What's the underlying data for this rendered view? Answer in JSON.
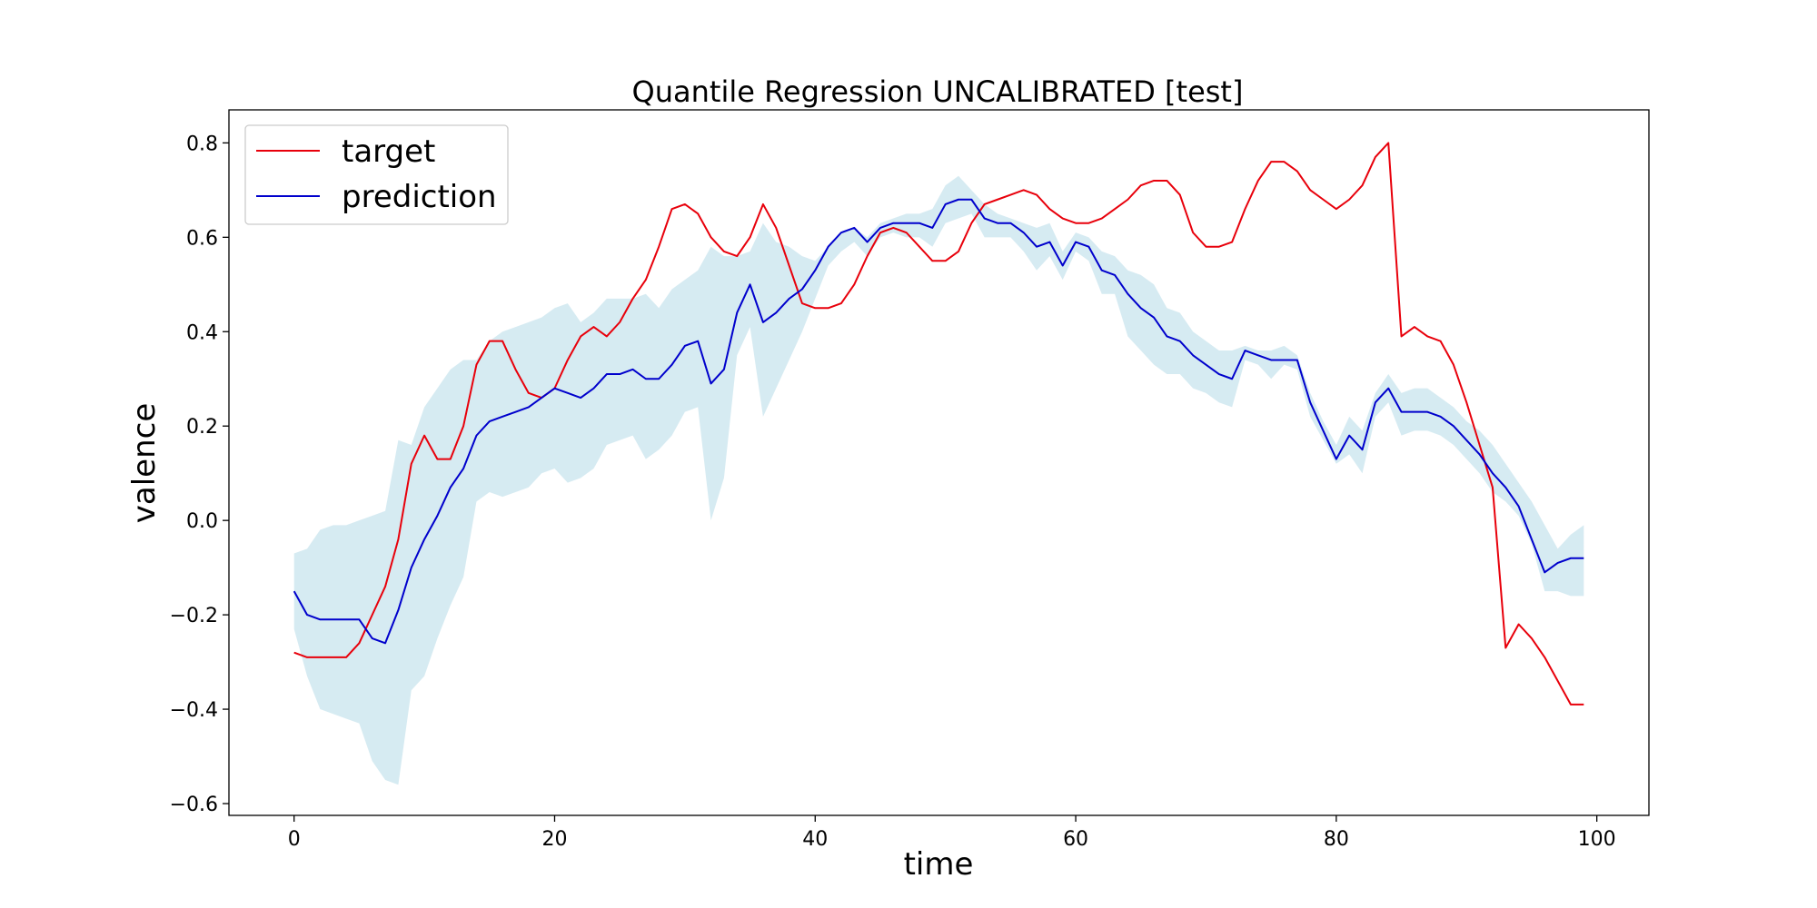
{
  "chart_data": {
    "type": "line",
    "title": "Quantile Regression UNCALIBRATED [test]",
    "xlabel": "time",
    "ylabel": "valence",
    "xlim": [
      -5,
      104
    ],
    "ylim": [
      -0.625,
      0.87
    ],
    "xticks": [
      0,
      20,
      40,
      60,
      80,
      100
    ],
    "xtick_labels": [
      "0",
      "20",
      "40",
      "60",
      "80",
      "100"
    ],
    "yticks": [
      -0.6,
      -0.4,
      -0.2,
      0.0,
      0.2,
      0.4,
      0.6,
      0.8
    ],
    "ytick_labels": [
      "−0.6",
      "−0.4",
      "−0.2",
      "0.0",
      "0.2",
      "0.4",
      "0.6",
      "0.8"
    ],
    "grid": false,
    "legend": {
      "position": "top-left",
      "entries": [
        "target",
        "prediction"
      ]
    },
    "colors": {
      "target": "#e8000b",
      "prediction": "#0000cc",
      "band": "#add8e6"
    },
    "x": [
      0,
      1,
      2,
      3,
      4,
      5,
      6,
      7,
      8,
      9,
      10,
      11,
      12,
      13,
      14,
      15,
      16,
      17,
      18,
      19,
      20,
      21,
      22,
      23,
      24,
      25,
      26,
      27,
      28,
      29,
      30,
      31,
      32,
      33,
      34,
      35,
      36,
      37,
      38,
      39,
      40,
      41,
      42,
      43,
      44,
      45,
      46,
      47,
      48,
      49,
      50,
      51,
      52,
      53,
      54,
      55,
      56,
      57,
      58,
      59,
      60,
      61,
      62,
      63,
      64,
      65,
      66,
      67,
      68,
      69,
      70,
      71,
      72,
      73,
      74,
      75,
      76,
      77,
      78,
      79,
      80,
      81,
      82,
      83,
      84,
      85,
      86,
      87,
      88,
      89,
      90,
      91,
      92,
      93,
      94,
      95,
      96,
      97,
      98,
      99
    ],
    "series": [
      {
        "name": "target",
        "values": [
          -0.28,
          -0.29,
          -0.29,
          -0.29,
          -0.29,
          -0.26,
          -0.2,
          -0.14,
          -0.04,
          0.12,
          0.18,
          0.13,
          0.13,
          0.2,
          0.33,
          0.38,
          0.38,
          0.32,
          0.27,
          0.26,
          0.28,
          0.34,
          0.39,
          0.41,
          0.39,
          0.42,
          0.47,
          0.51,
          0.58,
          0.66,
          0.67,
          0.65,
          0.6,
          0.57,
          0.56,
          0.6,
          0.67,
          0.62,
          0.54,
          0.46,
          0.45,
          0.45,
          0.46,
          0.5,
          0.56,
          0.61,
          0.62,
          0.61,
          0.58,
          0.55,
          0.55,
          0.57,
          0.63,
          0.67,
          0.68,
          0.69,
          0.7,
          0.69,
          0.66,
          0.64,
          0.63,
          0.63,
          0.64,
          0.66,
          0.68,
          0.71,
          0.72,
          0.72,
          0.69,
          0.61,
          0.58,
          0.58,
          0.59,
          0.66,
          0.72,
          0.76,
          0.76,
          0.74,
          0.7,
          0.68,
          0.66,
          0.68,
          0.71,
          0.77,
          0.8,
          0.39,
          0.41,
          0.39,
          0.38,
          0.33,
          0.25,
          0.16,
          0.07,
          -0.27,
          -0.22,
          -0.25,
          -0.29,
          -0.34,
          -0.39,
          -0.39
        ]
      },
      {
        "name": "prediction",
        "values": [
          -0.15,
          -0.2,
          -0.21,
          -0.21,
          -0.21,
          -0.21,
          -0.25,
          -0.26,
          -0.19,
          -0.1,
          -0.04,
          0.01,
          0.07,
          0.11,
          0.18,
          0.21,
          0.22,
          0.23,
          0.24,
          0.26,
          0.28,
          0.27,
          0.26,
          0.28,
          0.31,
          0.31,
          0.32,
          0.3,
          0.3,
          0.33,
          0.37,
          0.38,
          0.29,
          0.32,
          0.44,
          0.5,
          0.42,
          0.44,
          0.47,
          0.49,
          0.53,
          0.58,
          0.61,
          0.62,
          0.59,
          0.62,
          0.63,
          0.63,
          0.63,
          0.62,
          0.67,
          0.68,
          0.68,
          0.64,
          0.63,
          0.63,
          0.61,
          0.58,
          0.59,
          0.54,
          0.59,
          0.58,
          0.53,
          0.52,
          0.48,
          0.45,
          0.43,
          0.39,
          0.38,
          0.35,
          0.33,
          0.31,
          0.3,
          0.36,
          0.35,
          0.34,
          0.34,
          0.34,
          0.25,
          0.19,
          0.13,
          0.18,
          0.15,
          0.25,
          0.28,
          0.23,
          0.23,
          0.23,
          0.22,
          0.2,
          0.17,
          0.14,
          0.1,
          0.07,
          0.03,
          -0.04,
          -0.11,
          -0.09,
          -0.08,
          -0.08
        ]
      }
    ],
    "band": {
      "upper": [
        -0.07,
        -0.06,
        -0.02,
        -0.01,
        -0.01,
        0.0,
        0.01,
        0.02,
        0.17,
        0.16,
        0.24,
        0.28,
        0.32,
        0.34,
        0.34,
        0.38,
        0.4,
        0.41,
        0.42,
        0.43,
        0.45,
        0.46,
        0.42,
        0.44,
        0.47,
        0.47,
        0.47,
        0.48,
        0.45,
        0.49,
        0.51,
        0.53,
        0.58,
        0.56,
        0.56,
        0.57,
        0.63,
        0.59,
        0.58,
        0.56,
        0.55,
        0.58,
        0.61,
        0.62,
        0.6,
        0.63,
        0.64,
        0.65,
        0.65,
        0.66,
        0.71,
        0.73,
        0.7,
        0.67,
        0.65,
        0.64,
        0.63,
        0.62,
        0.63,
        0.57,
        0.61,
        0.6,
        0.57,
        0.56,
        0.53,
        0.52,
        0.5,
        0.45,
        0.44,
        0.4,
        0.38,
        0.36,
        0.36,
        0.37,
        0.36,
        0.36,
        0.37,
        0.35,
        0.27,
        0.21,
        0.16,
        0.22,
        0.19,
        0.27,
        0.31,
        0.27,
        0.28,
        0.28,
        0.26,
        0.24,
        0.21,
        0.19,
        0.16,
        0.12,
        0.08,
        0.04,
        -0.01,
        -0.06,
        -0.03,
        -0.01
      ],
      "lower": [
        -0.23,
        -0.33,
        -0.4,
        -0.41,
        -0.42,
        -0.43,
        -0.51,
        -0.55,
        -0.56,
        -0.36,
        -0.33,
        -0.25,
        -0.18,
        -0.12,
        0.04,
        0.06,
        0.05,
        0.06,
        0.07,
        0.1,
        0.11,
        0.08,
        0.09,
        0.11,
        0.16,
        0.17,
        0.18,
        0.13,
        0.15,
        0.18,
        0.23,
        0.24,
        0.0,
        0.09,
        0.35,
        0.41,
        0.22,
        0.28,
        0.34,
        0.4,
        0.47,
        0.54,
        0.57,
        0.59,
        0.56,
        0.6,
        0.61,
        0.6,
        0.6,
        0.58,
        0.63,
        0.64,
        0.65,
        0.6,
        0.6,
        0.6,
        0.57,
        0.53,
        0.56,
        0.51,
        0.57,
        0.55,
        0.48,
        0.48,
        0.39,
        0.36,
        0.33,
        0.31,
        0.31,
        0.28,
        0.27,
        0.25,
        0.24,
        0.34,
        0.33,
        0.3,
        0.33,
        0.32,
        0.22,
        0.17,
        0.12,
        0.14,
        0.1,
        0.22,
        0.25,
        0.18,
        0.19,
        0.19,
        0.18,
        0.16,
        0.13,
        0.1,
        0.06,
        0.04,
        0.01,
        -0.05,
        -0.15,
        -0.15,
        -0.16,
        -0.16
      ]
    }
  }
}
